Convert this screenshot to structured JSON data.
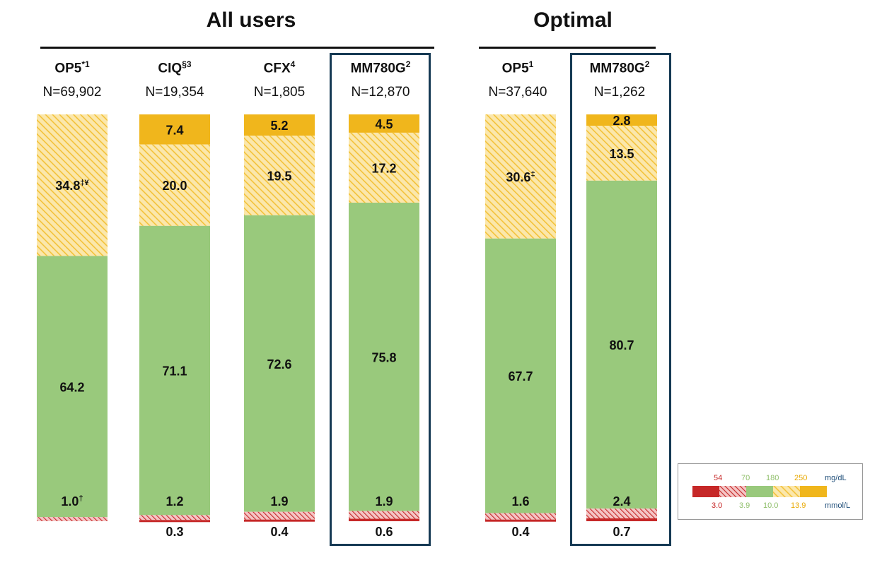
{
  "groups": {
    "all": {
      "title": "All users"
    },
    "optimal": {
      "title": "Optimal"
    }
  },
  "chart_data": {
    "type": "stacked-bar",
    "series_order": [
      "very_low",
      "low",
      "in_range",
      "high",
      "very_high"
    ],
    "colors": {
      "very_low": "#c62828",
      "low": "#d9535a",
      "in_range": "#99c97c",
      "high": "#f5ce55",
      "very_very_high_placeholder": "",
      "very_high": "#f0b61c"
    },
    "bars": [
      {
        "group": "All users",
        "name": "OP5",
        "sup": "*1",
        "n": "N=69,902",
        "very_low": 0,
        "low": 1.0,
        "in_range": 64.2,
        "high": 34.8,
        "very_high": 0,
        "labels": {
          "in_range": "64.2",
          "high": "34.8",
          "high_sup": "‡¥",
          "low": "1.0",
          "low_sup": "†"
        }
      },
      {
        "group": "All users",
        "name": "CIQ",
        "sup": "§3",
        "n": "N=19,354",
        "very_low": 0.3,
        "low": 1.2,
        "in_range": 71.1,
        "high": 20.0,
        "very_high": 7.4,
        "labels": {
          "very_high": "7.4",
          "high": "20.0",
          "in_range": "71.1",
          "low": "1.2",
          "very_low": "0.3"
        }
      },
      {
        "group": "All users",
        "name": "CFX",
        "sup": "4",
        "n": "N=1,805",
        "very_low": 0.4,
        "low": 1.9,
        "in_range": 72.6,
        "high": 19.5,
        "very_high": 5.2,
        "labels": {
          "very_high": "5.2",
          "high": "19.5",
          "in_range": "72.6",
          "low": "1.9",
          "very_low": "0.4"
        }
      },
      {
        "group": "All users",
        "name": "MM780G",
        "sup": "2",
        "n": "N=12,870",
        "very_low": 0.6,
        "low": 1.9,
        "in_range": 75.8,
        "high": 17.2,
        "very_high": 4.5,
        "labels": {
          "very_high": "4.5",
          "high": "17.2",
          "in_range": "75.8",
          "low": "1.9",
          "very_low": "0.6"
        }
      },
      {
        "group": "Optimal",
        "name": "OP5",
        "sup": "1",
        "n": "N=37,640",
        "very_low": 0.4,
        "low": 1.6,
        "in_range": 67.7,
        "high": 30.6,
        "very_high": 0,
        "labels": {
          "high": "30.6",
          "high_sup": "‡",
          "in_range": "67.7",
          "low": "1.6",
          "very_low": "0.4"
        }
      },
      {
        "group": "Optimal",
        "name": "MM780G",
        "sup": "2",
        "n": "N=1,262",
        "very_low": 0.7,
        "low": 2.4,
        "in_range": 80.7,
        "high": 13.5,
        "very_high": 2.8,
        "labels": {
          "very_high": "2.8",
          "high": "13.5",
          "in_range": "80.7",
          "low": "2.4",
          "very_low": "0.7"
        }
      }
    ],
    "ylim": [
      0,
      100
    ]
  },
  "legend": {
    "mgdl_values": [
      "54",
      "70",
      "180",
      "250"
    ],
    "mgdl_unit": "mg/dL",
    "mmol_values": [
      "3.0",
      "3.9",
      "10.0",
      "13.9"
    ],
    "mmol_unit": "mmol/L"
  }
}
